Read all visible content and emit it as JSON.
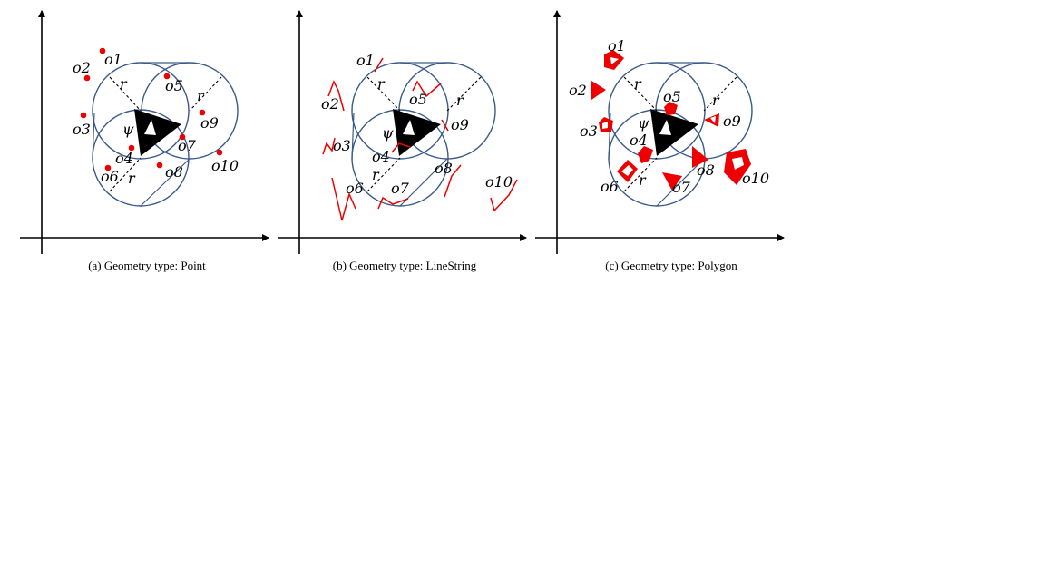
{
  "panels": [
    {
      "key": "a",
      "caption": "(a)  Geometry type: Point",
      "labels": {
        "psi": "ψ",
        "r": "r",
        "o1": "o1",
        "o2": "o2",
        "o3": "o3",
        "o4": "o4",
        "o5": "o5",
        "o6": "o6",
        "o7": "o7",
        "o8": "o8",
        "o9": "o9",
        "o10": "o10"
      }
    },
    {
      "key": "b",
      "caption": "(b)  Geometry type: LineString",
      "labels": {
        "psi": "ψ",
        "r": "r",
        "o1": "o1",
        "o2": "o2",
        "o3": "o3",
        "o4": "o4",
        "o5": "o5",
        "o6": "o6",
        "o7": "o7",
        "o8": "o8",
        "o9": "o9",
        "o10": "o10"
      }
    },
    {
      "key": "c",
      "caption": "(c)  Geometry type: Polygon",
      "labels": {
        "psi": "ψ",
        "r": "r",
        "o1": "o1",
        "o2": "o2",
        "o3": "o3",
        "o4": "o4",
        "o5": "o5",
        "o6": "o6",
        "o7": "o7",
        "o8": "o8",
        "o9": "o9",
        "o10": "o10"
      }
    }
  ],
  "colors": {
    "object": "#ee0000",
    "query": "#000000",
    "circle": "#3a5a8c"
  }
}
